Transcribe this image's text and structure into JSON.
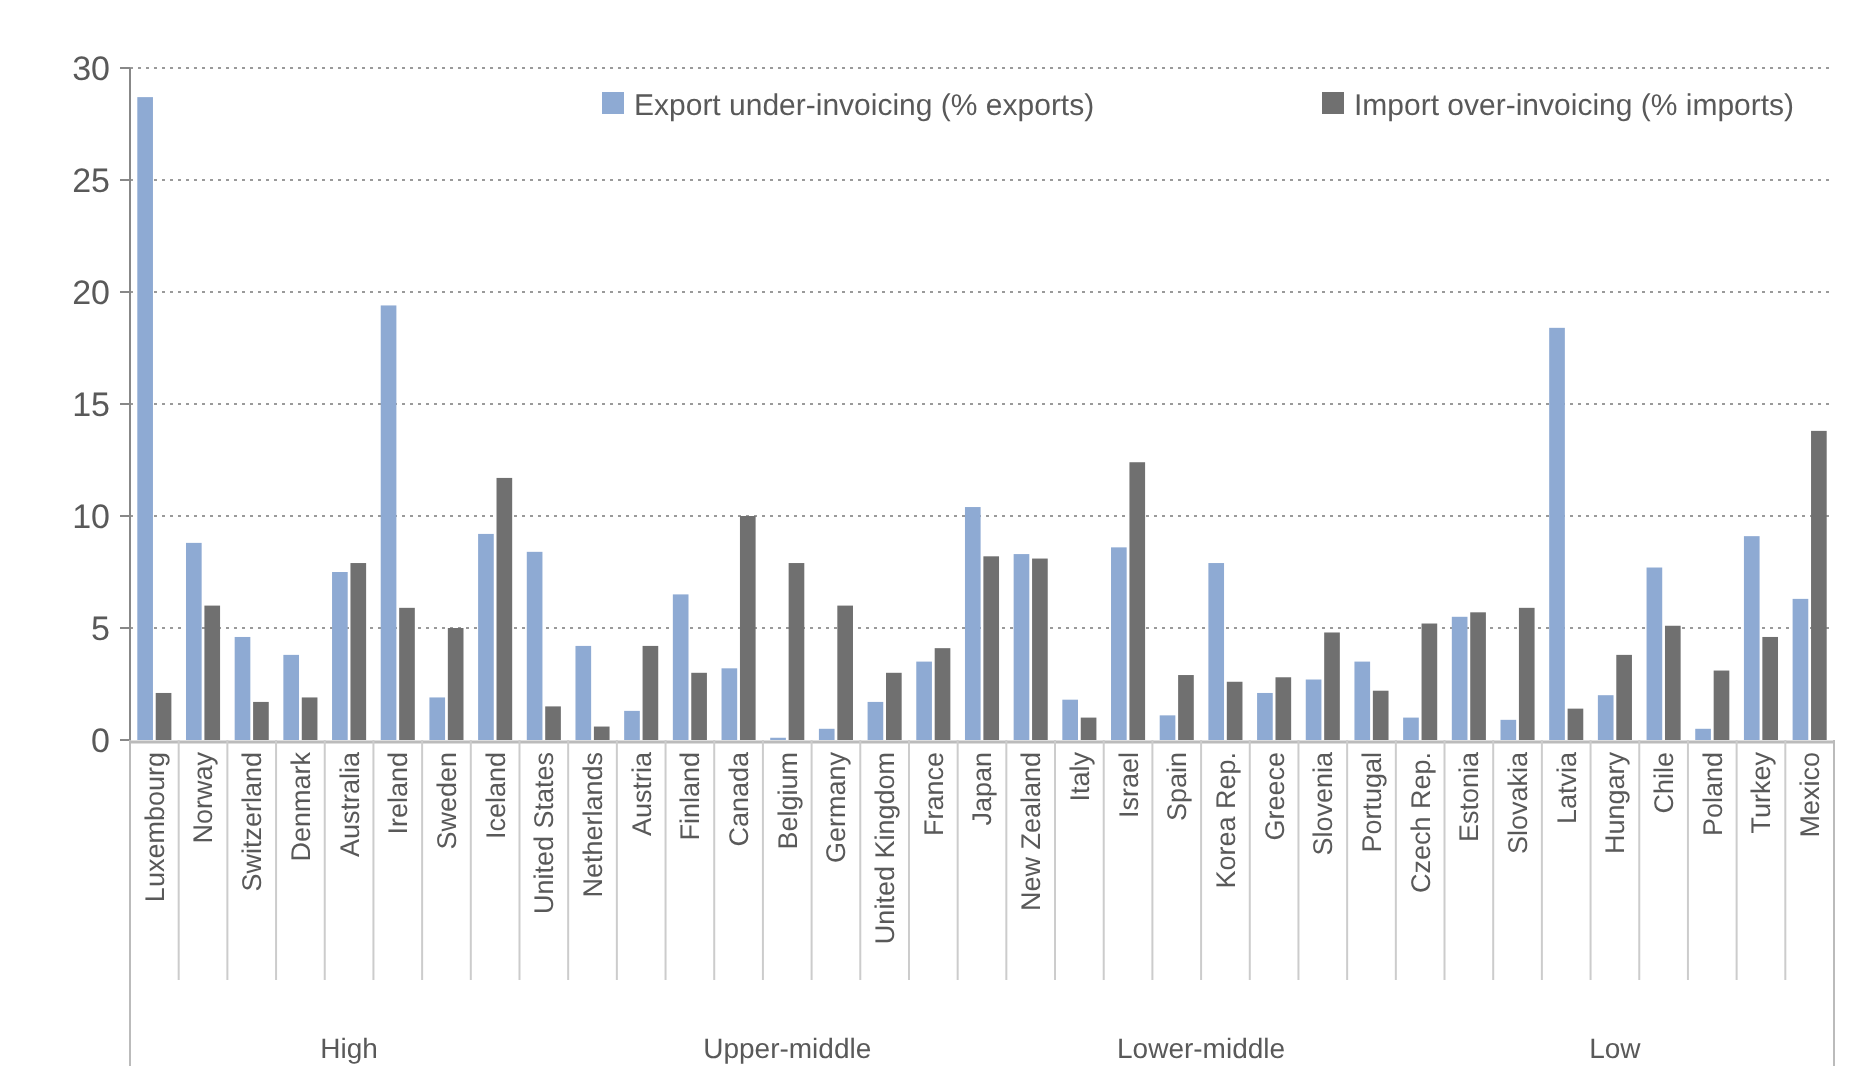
{
  "chart_data": {
    "type": "bar",
    "categories": [
      "Luxembourg",
      "Norway",
      "Switzerland",
      "Denmark",
      "Australia",
      "Ireland",
      "Sweden",
      "Iceland",
      "United States",
      "Netherlands",
      "Austria",
      "Finland",
      "Canada",
      "Belgium",
      "Germany",
      "United Kingdom",
      "France",
      "Japan",
      "New Zealand",
      "Italy",
      "Israel",
      "Spain",
      "Korea Rep.",
      "Greece",
      "Slovenia",
      "Portugal",
      "Czech Rep.",
      "Estonia",
      "Slovakia",
      "Latvia",
      "Hungary",
      "Chile",
      "Poland",
      "Turkey",
      "Mexico"
    ],
    "series": [
      {
        "name": "Export under-invoicing (% exports)",
        "color": "#8eaad3",
        "values": [
          28.7,
          8.8,
          4.6,
          3.8,
          7.5,
          19.4,
          1.9,
          9.2,
          8.4,
          4.2,
          1.3,
          6.5,
          3.2,
          0.1,
          0.5,
          1.7,
          3.5,
          10.4,
          8.3,
          1.8,
          8.6,
          1.1,
          7.9,
          2.1,
          2.7,
          3.5,
          1.0,
          5.5,
          0.9,
          18.4,
          2.0,
          7.7,
          0.5,
          9.1,
          6.3
        ]
      },
      {
        "name": "Import over-invoicing (% imports)",
        "color": "#707070",
        "values": [
          2.1,
          6.0,
          1.7,
          1.9,
          7.9,
          5.9,
          5.0,
          11.7,
          1.5,
          0.6,
          4.2,
          3.0,
          10.0,
          7.9,
          6.0,
          3.0,
          4.1,
          8.2,
          8.1,
          1.0,
          12.4,
          2.9,
          2.6,
          2.8,
          4.8,
          2.2,
          5.2,
          5.7,
          5.9,
          1.4,
          3.8,
          5.1,
          3.1,
          4.6,
          13.8
        ]
      }
    ],
    "ylim": [
      0,
      30
    ],
    "yticks": [
      0,
      5,
      10,
      15,
      20,
      25,
      30
    ],
    "grid": "y",
    "legend": "top",
    "annotations": [
      "High",
      "Upper-middle",
      "Lower-middle",
      "Low"
    ]
  }
}
